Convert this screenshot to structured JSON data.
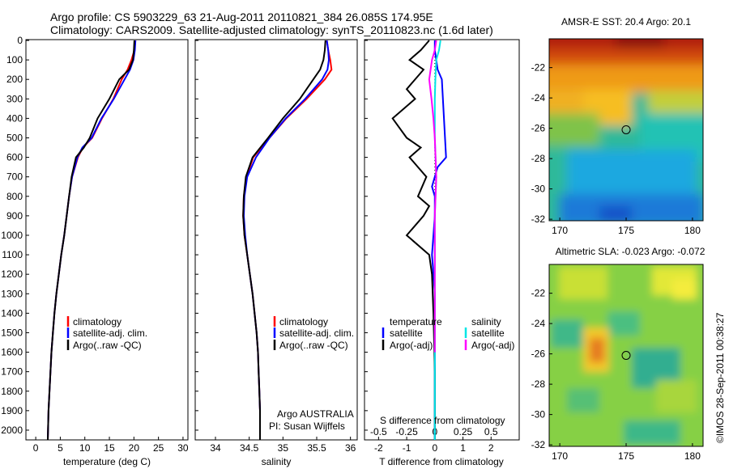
{
  "header": {
    "line1": "Argo profile: CS 5903229_63 21-Aug-2011 20110821_384 26.085S 174.95E",
    "line2": "Climatology: CARS2009. Satellite-adjusted climatology: synTS_20110823.nc (1.6d later)"
  },
  "depth_ticks": [
    "0",
    "100",
    "200",
    "300",
    "400",
    "500",
    "600",
    "700",
    "800",
    "900",
    "1000",
    "1100",
    "1200",
    "1300",
    "1400",
    "1500",
    "1600",
    "1700",
    "1800",
    "1900",
    "2000"
  ],
  "colors": {
    "climatology": "#ff0000",
    "satellite": "#0000ff",
    "argo": "#000000",
    "salinity_satellite": "#00e5e5",
    "salinity_argo": "#ff00ff"
  },
  "panels": {
    "temperature": {
      "xlabel": "temperature (deg C)",
      "xticks": [
        "0",
        "5",
        "10",
        "15",
        "20",
        "25",
        "30"
      ],
      "legend": [
        "climatology",
        "satellite-adj. clim.",
        "Argo(..raw -QC)"
      ]
    },
    "salinity": {
      "xlabel": "salinity",
      "xticks": [
        "34",
        "34.5",
        "35",
        "35.5",
        "36"
      ],
      "legend": [
        "climatology",
        "satellite-adj. clim.",
        "Argo(..raw -QC)"
      ],
      "credit1": "Argo AUSTRALIA",
      "credit2": "PI: Susan Wijffels"
    },
    "difference": {
      "xlabel": "T difference from climatology",
      "toplabel": "S difference from climatology",
      "xticks": [
        "-2",
        "-1",
        "0",
        "1",
        "2"
      ],
      "sticks": [
        "-0.5",
        "-0.25",
        "0",
        "0.25",
        "0.5"
      ],
      "leg_t_title": "temperature",
      "leg_t": [
        "satellite",
        "Argo(-adj)"
      ],
      "leg_s_title": "salinity",
      "leg_s": [
        "satellite",
        "Argo(-adj)"
      ]
    }
  },
  "maps": {
    "sst_title": "AMSR-E SST: 20.4  Argo: 20.1",
    "sla_title": "Altimetric SLA: -0.023  Argo: -0.072",
    "yticks": [
      "-22",
      "-24",
      "-26",
      "-28",
      "-30",
      "-32"
    ],
    "xticks": [
      "170",
      "175",
      "180"
    ],
    "marker": {
      "lon": 175,
      "lat": -26.1
    }
  },
  "stamp": "©IMOS 28-Sep-2011 00:38:27",
  "chart_data": [
    {
      "type": "line",
      "title": "",
      "xlabel": "temperature (deg C)",
      "ylabel": "",
      "xlim": [
        -2,
        31
      ],
      "ylim": [
        2050,
        0
      ],
      "series": [
        {
          "name": "climatology",
          "x": [
            20.3,
            20.1,
            19.5,
            18.7,
            17.5,
            15.8,
            13.5,
            11.5,
            9.6,
            8.6,
            7.4,
            6.8,
            6.3,
            5.8,
            5.2,
            4.7,
            4.2,
            3.8,
            3.5,
            3.2,
            3.0,
            2.8,
            2.6,
            2.5,
            2.45
          ],
          "y": [
            0,
            50,
            100,
            150,
            200,
            300,
            400,
            500,
            550,
            600,
            700,
            800,
            900,
            1000,
            1100,
            1200,
            1300,
            1400,
            1500,
            1600,
            1700,
            1800,
            1900,
            2000,
            2050
          ]
        },
        {
          "name": "satellite-adj. clim.",
          "x": [
            20.3,
            20.2,
            19.9,
            19.2,
            18.1,
            15.9,
            13.4,
            11.4,
            9.5,
            8.5,
            7.4,
            6.8,
            6.3,
            5.8,
            5.2,
            4.7,
            4.2,
            3.8,
            3.5,
            3.2,
            3.0,
            2.8,
            2.6,
            2.5,
            2.45
          ],
          "y": [
            0,
            50,
            100,
            150,
            200,
            300,
            400,
            500,
            550,
            600,
            700,
            800,
            900,
            1000,
            1100,
            1200,
            1300,
            1400,
            1500,
            1600,
            1700,
            1800,
            1900,
            2000,
            2050
          ]
        },
        {
          "name": "Argo(..raw -QC)",
          "x": [
            20.1,
            20.0,
            19.8,
            19.0,
            17.0,
            15.0,
            12.6,
            11.0,
            9.8,
            8.2,
            7.3,
            6.8,
            6.3,
            5.8,
            5.2,
            4.7,
            4.2,
            3.8,
            3.5,
            3.2,
            3.0,
            2.8,
            2.6,
            2.5,
            2.45
          ],
          "y": [
            0,
            50,
            100,
            150,
            200,
            300,
            400,
            500,
            550,
            600,
            700,
            800,
            900,
            1000,
            1100,
            1200,
            1300,
            1400,
            1500,
            1600,
            1700,
            1800,
            1900,
            2000,
            2050
          ]
        }
      ]
    },
    {
      "type": "line",
      "title": "",
      "xlabel": "salinity",
      "ylabel": "",
      "xlim": [
        33.7,
        36.1
      ],
      "ylim": [
        2050,
        0
      ],
      "series": [
        {
          "name": "climatology",
          "x": [
            35.65,
            35.67,
            35.7,
            35.72,
            35.62,
            35.35,
            35.05,
            34.8,
            34.56,
            34.46,
            34.42,
            34.41,
            34.43,
            34.47,
            34.51,
            34.55,
            34.58,
            34.61,
            34.63,
            34.64,
            34.65,
            34.66,
            34.66
          ],
          "y": [
            0,
            50,
            100,
            150,
            200,
            300,
            400,
            500,
            600,
            700,
            800,
            900,
            1000,
            1100,
            1200,
            1300,
            1400,
            1500,
            1600,
            1700,
            1800,
            1900,
            2050
          ]
        },
        {
          "name": "satellite-adj. clim.",
          "x": [
            35.65,
            35.67,
            35.68,
            35.66,
            35.58,
            35.33,
            35.04,
            34.8,
            34.6,
            34.47,
            34.43,
            34.42,
            34.44,
            34.47,
            34.51,
            34.55,
            34.58,
            34.61,
            34.63,
            34.64,
            34.65,
            34.66,
            34.66
          ],
          "y": [
            0,
            50,
            100,
            150,
            200,
            300,
            400,
            500,
            600,
            700,
            800,
            900,
            1000,
            1100,
            1200,
            1300,
            1400,
            1500,
            1600,
            1700,
            1800,
            1900,
            2050
          ]
        },
        {
          "name": "Argo(..raw -QC)",
          "x": [
            35.63,
            35.62,
            35.6,
            35.55,
            35.45,
            35.25,
            35.0,
            34.78,
            34.55,
            34.45,
            34.42,
            34.41,
            34.43,
            34.47,
            34.51,
            34.55,
            34.58,
            34.61,
            34.63,
            34.64,
            34.65,
            34.66,
            34.66
          ],
          "y": [
            0,
            50,
            100,
            150,
            200,
            300,
            400,
            500,
            600,
            700,
            800,
            900,
            1000,
            1100,
            1200,
            1300,
            1400,
            1500,
            1600,
            1700,
            1800,
            1900,
            2050
          ]
        }
      ]
    },
    {
      "type": "line",
      "title": "",
      "xlabel": "T difference from climatology",
      "ylabel": "",
      "xlim": [
        -2.5,
        3.0
      ],
      "ylim": [
        2050,
        0
      ],
      "series": [
        {
          "name": "temperature satellite",
          "x": [
            0.0,
            0.0,
            0.05,
            0.1,
            0.25,
            0.4,
            0.1,
            0.0,
            -0.1,
            0.0,
            0.0,
            -0.05,
            -0.1,
            -0.05,
            0,
            0.0,
            0.0,
            0.0,
            0.0
          ],
          "y": [
            0,
            50,
            100,
            150,
            200,
            600,
            650,
            700,
            750,
            800,
            900,
            1000,
            1100,
            1200,
            1300,
            1500,
            1700,
            1900,
            2050
          ]
        },
        {
          "name": "temperature Argo(-adj)",
          "x": [
            -0.2,
            -0.5,
            -0.9,
            -0.4,
            -1.0,
            -0.7,
            -1.5,
            -1.0,
            -0.5,
            -0.9,
            -0.3,
            -0.6,
            -0.2,
            -0.4,
            -1.0,
            -0.2,
            -0.1,
            -0.05,
            0.0,
            0.0
          ],
          "y": [
            0,
            50,
            100,
            150,
            250,
            300,
            400,
            500,
            550,
            600,
            700,
            800,
            850,
            900,
            1000,
            1100,
            1200,
            1400,
            1700,
            2050
          ]
        },
        {
          "name": "salinity satellite",
          "x": [
            0.2,
            0.15,
            0.05,
            0.02,
            0.0,
            0.0,
            0.0,
            0.05,
            0.0,
            0.0,
            0.0,
            0.0
          ],
          "y": [
            0,
            50,
            100,
            200,
            300,
            400,
            500,
            700,
            900,
            1100,
            1500,
            2050
          ]
        },
        {
          "name": "salinity Argo(-adj)",
          "x": [
            0.05,
            0.0,
            -0.1,
            -0.2,
            -0.12,
            -0.05,
            0.0,
            0.05,
            0.0,
            0.0
          ],
          "y": [
            0,
            50,
            100,
            200,
            300,
            400,
            500,
            700,
            900,
            1600
          ]
        }
      ]
    }
  ]
}
